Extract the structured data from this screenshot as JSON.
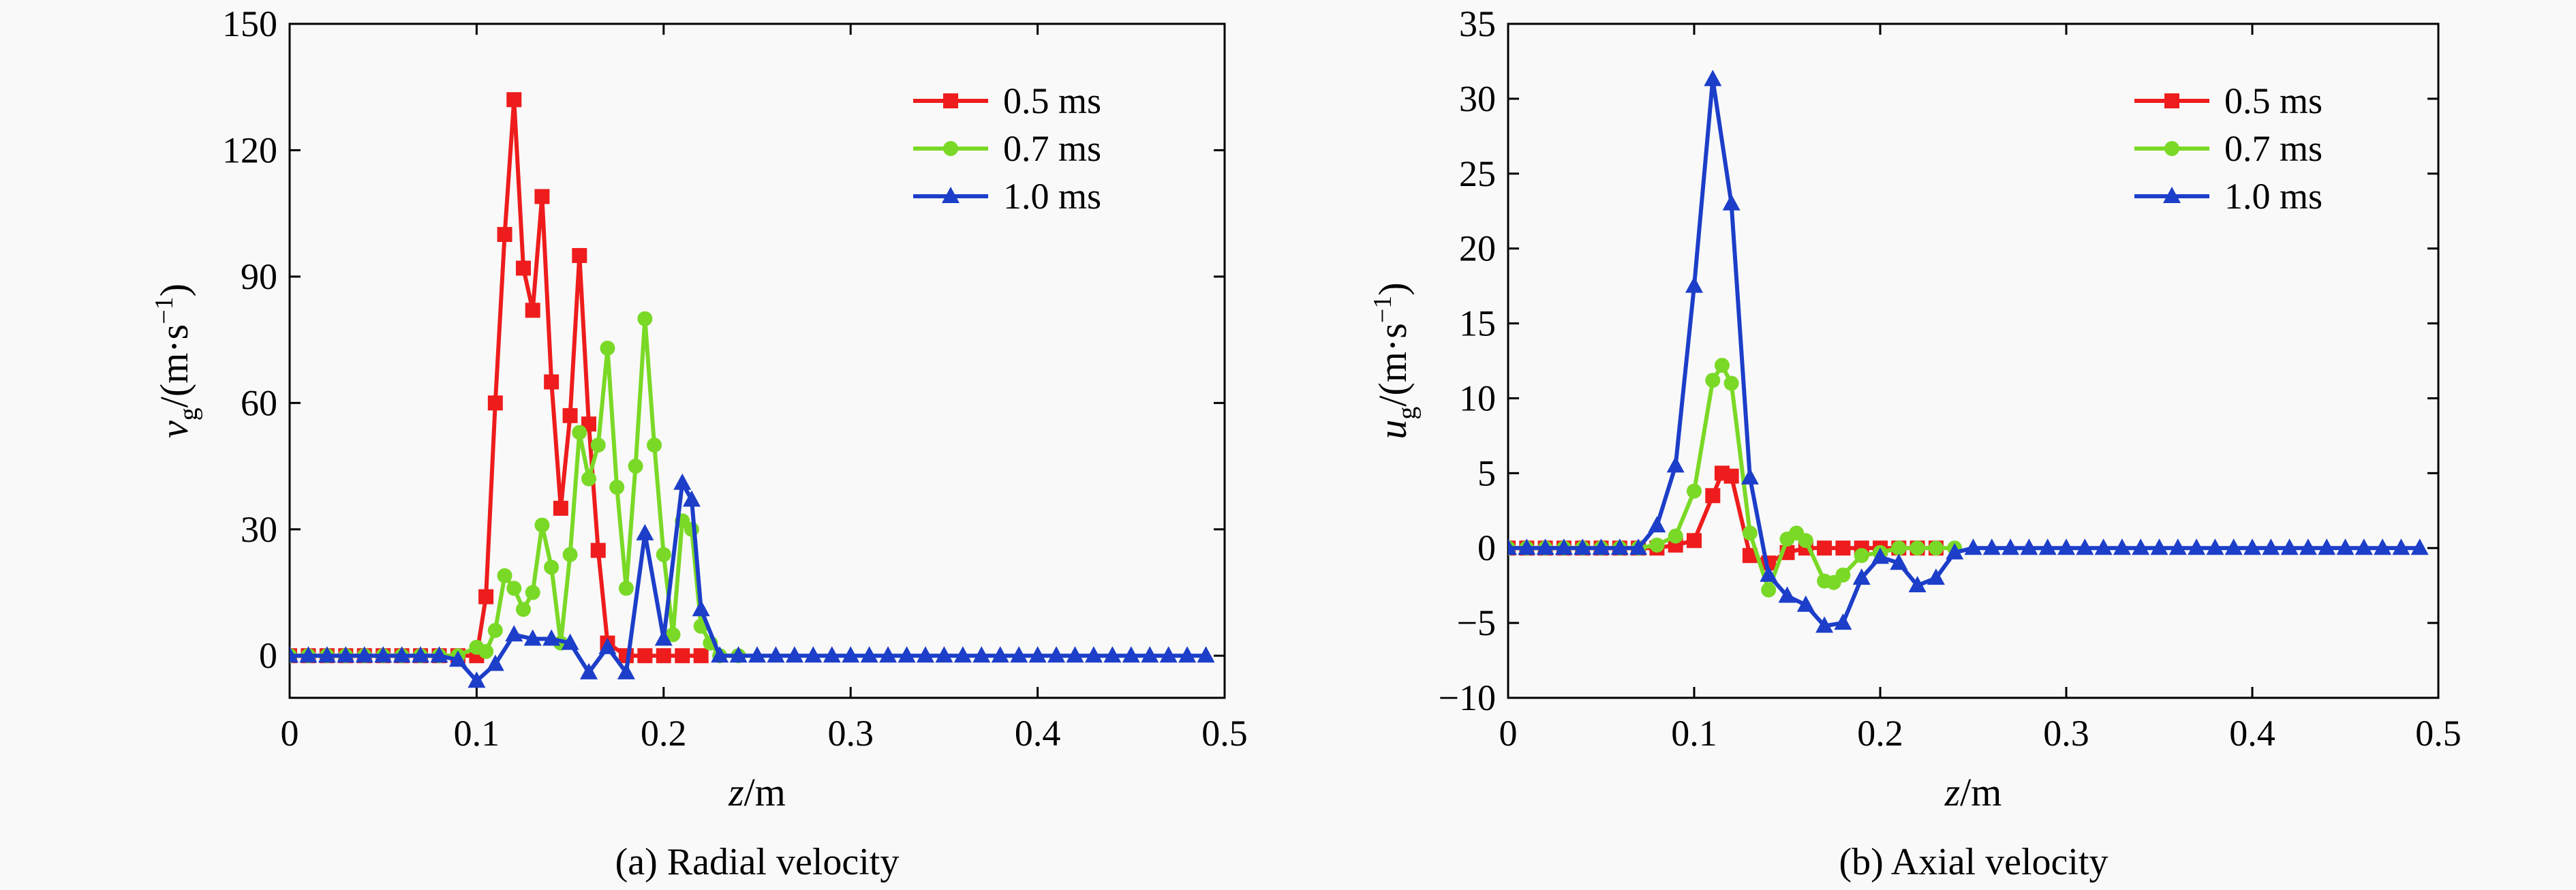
{
  "chart_data": [
    {
      "type": "line",
      "caption": "(a) Radial velocity",
      "xlabel": {
        "var": "z",
        "unit": "/m"
      },
      "ylabel": {
        "var": "v",
        "sub": "g",
        "unit": "/(m·s",
        "sup": "−1",
        "close": ")"
      },
      "xlim": [
        0,
        0.5
      ],
      "ylim": [
        -10,
        150
      ],
      "xticks": [
        0,
        0.1,
        0.2,
        0.3,
        0.4,
        0.5
      ],
      "xtick_labels": [
        "0",
        "0.1",
        "0.2",
        "0.3",
        "0.4",
        "0.5"
      ],
      "yticks": [
        0,
        30,
        60,
        90,
        120,
        150
      ],
      "ytick_labels": [
        "0",
        "30",
        "60",
        "90",
        "120",
        "150"
      ],
      "legend_position": "top-right",
      "series": [
        {
          "name": "0.5 ms",
          "color": "#ee1c1c",
          "marker": "square",
          "x": [
            0,
            0.01,
            0.02,
            0.03,
            0.04,
            0.05,
            0.06,
            0.07,
            0.08,
            0.09,
            0.1,
            0.105,
            0.11,
            0.115,
            0.12,
            0.125,
            0.13,
            0.135,
            0.14,
            0.145,
            0.15,
            0.155,
            0.16,
            0.165,
            0.17,
            0.18,
            0.19,
            0.2,
            0.21,
            0.22
          ],
          "y": [
            0,
            0,
            0,
            0,
            0,
            0,
            0,
            0,
            0,
            0,
            0,
            14,
            60,
            100,
            132,
            92,
            82,
            109,
            65,
            35,
            57,
            95,
            55,
            25,
            3,
            0,
            0,
            0,
            0,
            0
          ]
        },
        {
          "name": "0.7 ms",
          "color": "#7ad926",
          "marker": "circle",
          "x": [
            0,
            0.01,
            0.02,
            0.03,
            0.04,
            0.05,
            0.06,
            0.07,
            0.08,
            0.09,
            0.1,
            0.105,
            0.11,
            0.115,
            0.12,
            0.125,
            0.13,
            0.135,
            0.14,
            0.145,
            0.15,
            0.155,
            0.16,
            0.165,
            0.17,
            0.175,
            0.18,
            0.185,
            0.19,
            0.195,
            0.2,
            0.205,
            0.21,
            0.215,
            0.22,
            0.225,
            0.23,
            0.24
          ],
          "y": [
            0,
            0,
            0,
            0,
            0,
            0,
            0,
            0,
            0,
            0,
            2,
            1,
            6,
            19,
            16,
            11,
            15,
            31,
            21,
            3,
            24,
            53,
            42,
            50,
            73,
            40,
            16,
            45,
            80,
            50,
            24,
            5,
            32,
            30,
            7,
            3,
            0,
            0
          ]
        },
        {
          "name": "1.0 ms",
          "color": "#1c3ec9",
          "marker": "triangle",
          "x": [
            0,
            0.01,
            0.02,
            0.03,
            0.04,
            0.05,
            0.06,
            0.07,
            0.08,
            0.09,
            0.1,
            0.11,
            0.12,
            0.13,
            0.14,
            0.15,
            0.16,
            0.17,
            0.18,
            0.19,
            0.2,
            0.21,
            0.215,
            0.22,
            0.23,
            0.24,
            0.25,
            0.26,
            0.27,
            0.28,
            0.29,
            0.3,
            0.31,
            0.32,
            0.33,
            0.34,
            0.35,
            0.36,
            0.37,
            0.38,
            0.39,
            0.4,
            0.41,
            0.42,
            0.43,
            0.44,
            0.45,
            0.46,
            0.47,
            0.48,
            0.49
          ],
          "y": [
            0,
            0,
            0,
            0,
            0,
            0,
            0,
            0,
            0,
            -1,
            -6,
            -2,
            5,
            4,
            4,
            3,
            -4,
            2,
            -4,
            29,
            4,
            41,
            37,
            11,
            0,
            0,
            0,
            0,
            0,
            0,
            0,
            0,
            0,
            0,
            0,
            0,
            0,
            0,
            0,
            0,
            0,
            0,
            0,
            0,
            0,
            0,
            0,
            0,
            0,
            0,
            0
          ]
        }
      ]
    },
    {
      "type": "line",
      "caption": "(b) Axial velocity",
      "xlabel": {
        "var": "z",
        "unit": "/m"
      },
      "ylabel": {
        "var": "u",
        "sub": "g",
        "unit": "/(m·s",
        "sup": "−1",
        "close": ")"
      },
      "xlim": [
        0,
        0.5
      ],
      "ylim": [
        -10,
        35
      ],
      "xticks": [
        0,
        0.1,
        0.2,
        0.3,
        0.4,
        0.5
      ],
      "xtick_labels": [
        "0",
        "0.1",
        "0.2",
        "0.3",
        "0.4",
        "0.5"
      ],
      "yticks": [
        -10,
        -5,
        0,
        5,
        10,
        15,
        20,
        25,
        30,
        35
      ],
      "ytick_labels": [
        "−10",
        "−5",
        "0",
        "5",
        "10",
        "15",
        "20",
        "25",
        "30",
        "35"
      ],
      "legend_position": "top-right",
      "series": [
        {
          "name": "0.5 ms",
          "color": "#ee1c1c",
          "marker": "square",
          "x": [
            0,
            0.01,
            0.02,
            0.03,
            0.04,
            0.05,
            0.06,
            0.07,
            0.08,
            0.09,
            0.1,
            0.11,
            0.115,
            0.12,
            0.13,
            0.14,
            0.15,
            0.16,
            0.17,
            0.18,
            0.19,
            0.2,
            0.21,
            0.22,
            0.23
          ],
          "y": [
            0,
            0,
            0,
            0,
            0,
            0,
            0,
            0,
            0,
            0.2,
            0.5,
            3.5,
            5.0,
            4.8,
            -0.5,
            -1.0,
            -0.3,
            0,
            0,
            0,
            0,
            0,
            0,
            0,
            0
          ]
        },
        {
          "name": "0.7 ms",
          "color": "#7ad926",
          "marker": "circle",
          "x": [
            0,
            0.01,
            0.02,
            0.03,
            0.04,
            0.05,
            0.06,
            0.07,
            0.08,
            0.09,
            0.1,
            0.11,
            0.115,
            0.12,
            0.13,
            0.14,
            0.15,
            0.155,
            0.16,
            0.17,
            0.175,
            0.18,
            0.19,
            0.2,
            0.21,
            0.22,
            0.23,
            0.24
          ],
          "y": [
            0,
            0,
            0,
            0,
            0,
            0,
            0,
            0,
            0.2,
            0.8,
            3.8,
            11.2,
            12.2,
            11.0,
            1.0,
            -2.8,
            0.6,
            1.0,
            0.5,
            -2.2,
            -2.3,
            -1.8,
            -0.5,
            -0.3,
            0,
            0,
            0,
            0
          ]
        },
        {
          "name": "1.0 ms",
          "color": "#1c3ec9",
          "marker": "triangle",
          "x": [
            0,
            0.01,
            0.02,
            0.03,
            0.04,
            0.05,
            0.06,
            0.07,
            0.08,
            0.09,
            0.1,
            0.11,
            0.12,
            0.13,
            0.14,
            0.15,
            0.16,
            0.17,
            0.18,
            0.19,
            0.2,
            0.21,
            0.22,
            0.23,
            0.24,
            0.25,
            0.26,
            0.27,
            0.28,
            0.29,
            0.3,
            0.31,
            0.32,
            0.33,
            0.34,
            0.35,
            0.36,
            0.37,
            0.38,
            0.39,
            0.4,
            0.41,
            0.42,
            0.43,
            0.44,
            0.45,
            0.46,
            0.47,
            0.48,
            0.49
          ],
          "y": [
            0,
            0,
            0,
            0,
            0,
            0,
            0,
            0,
            1.5,
            5.5,
            17.5,
            31.3,
            23.0,
            4.7,
            -1.8,
            -3.2,
            -3.8,
            -5.2,
            -5.0,
            -2.0,
            -0.6,
            -1.0,
            -2.5,
            -2.0,
            -0.3,
            0,
            0,
            0,
            0,
            0,
            0,
            0,
            0,
            0,
            0,
            0,
            0,
            0,
            0,
            0,
            0,
            0,
            0,
            0,
            0,
            0,
            0,
            0,
            0,
            0
          ]
        }
      ]
    }
  ]
}
